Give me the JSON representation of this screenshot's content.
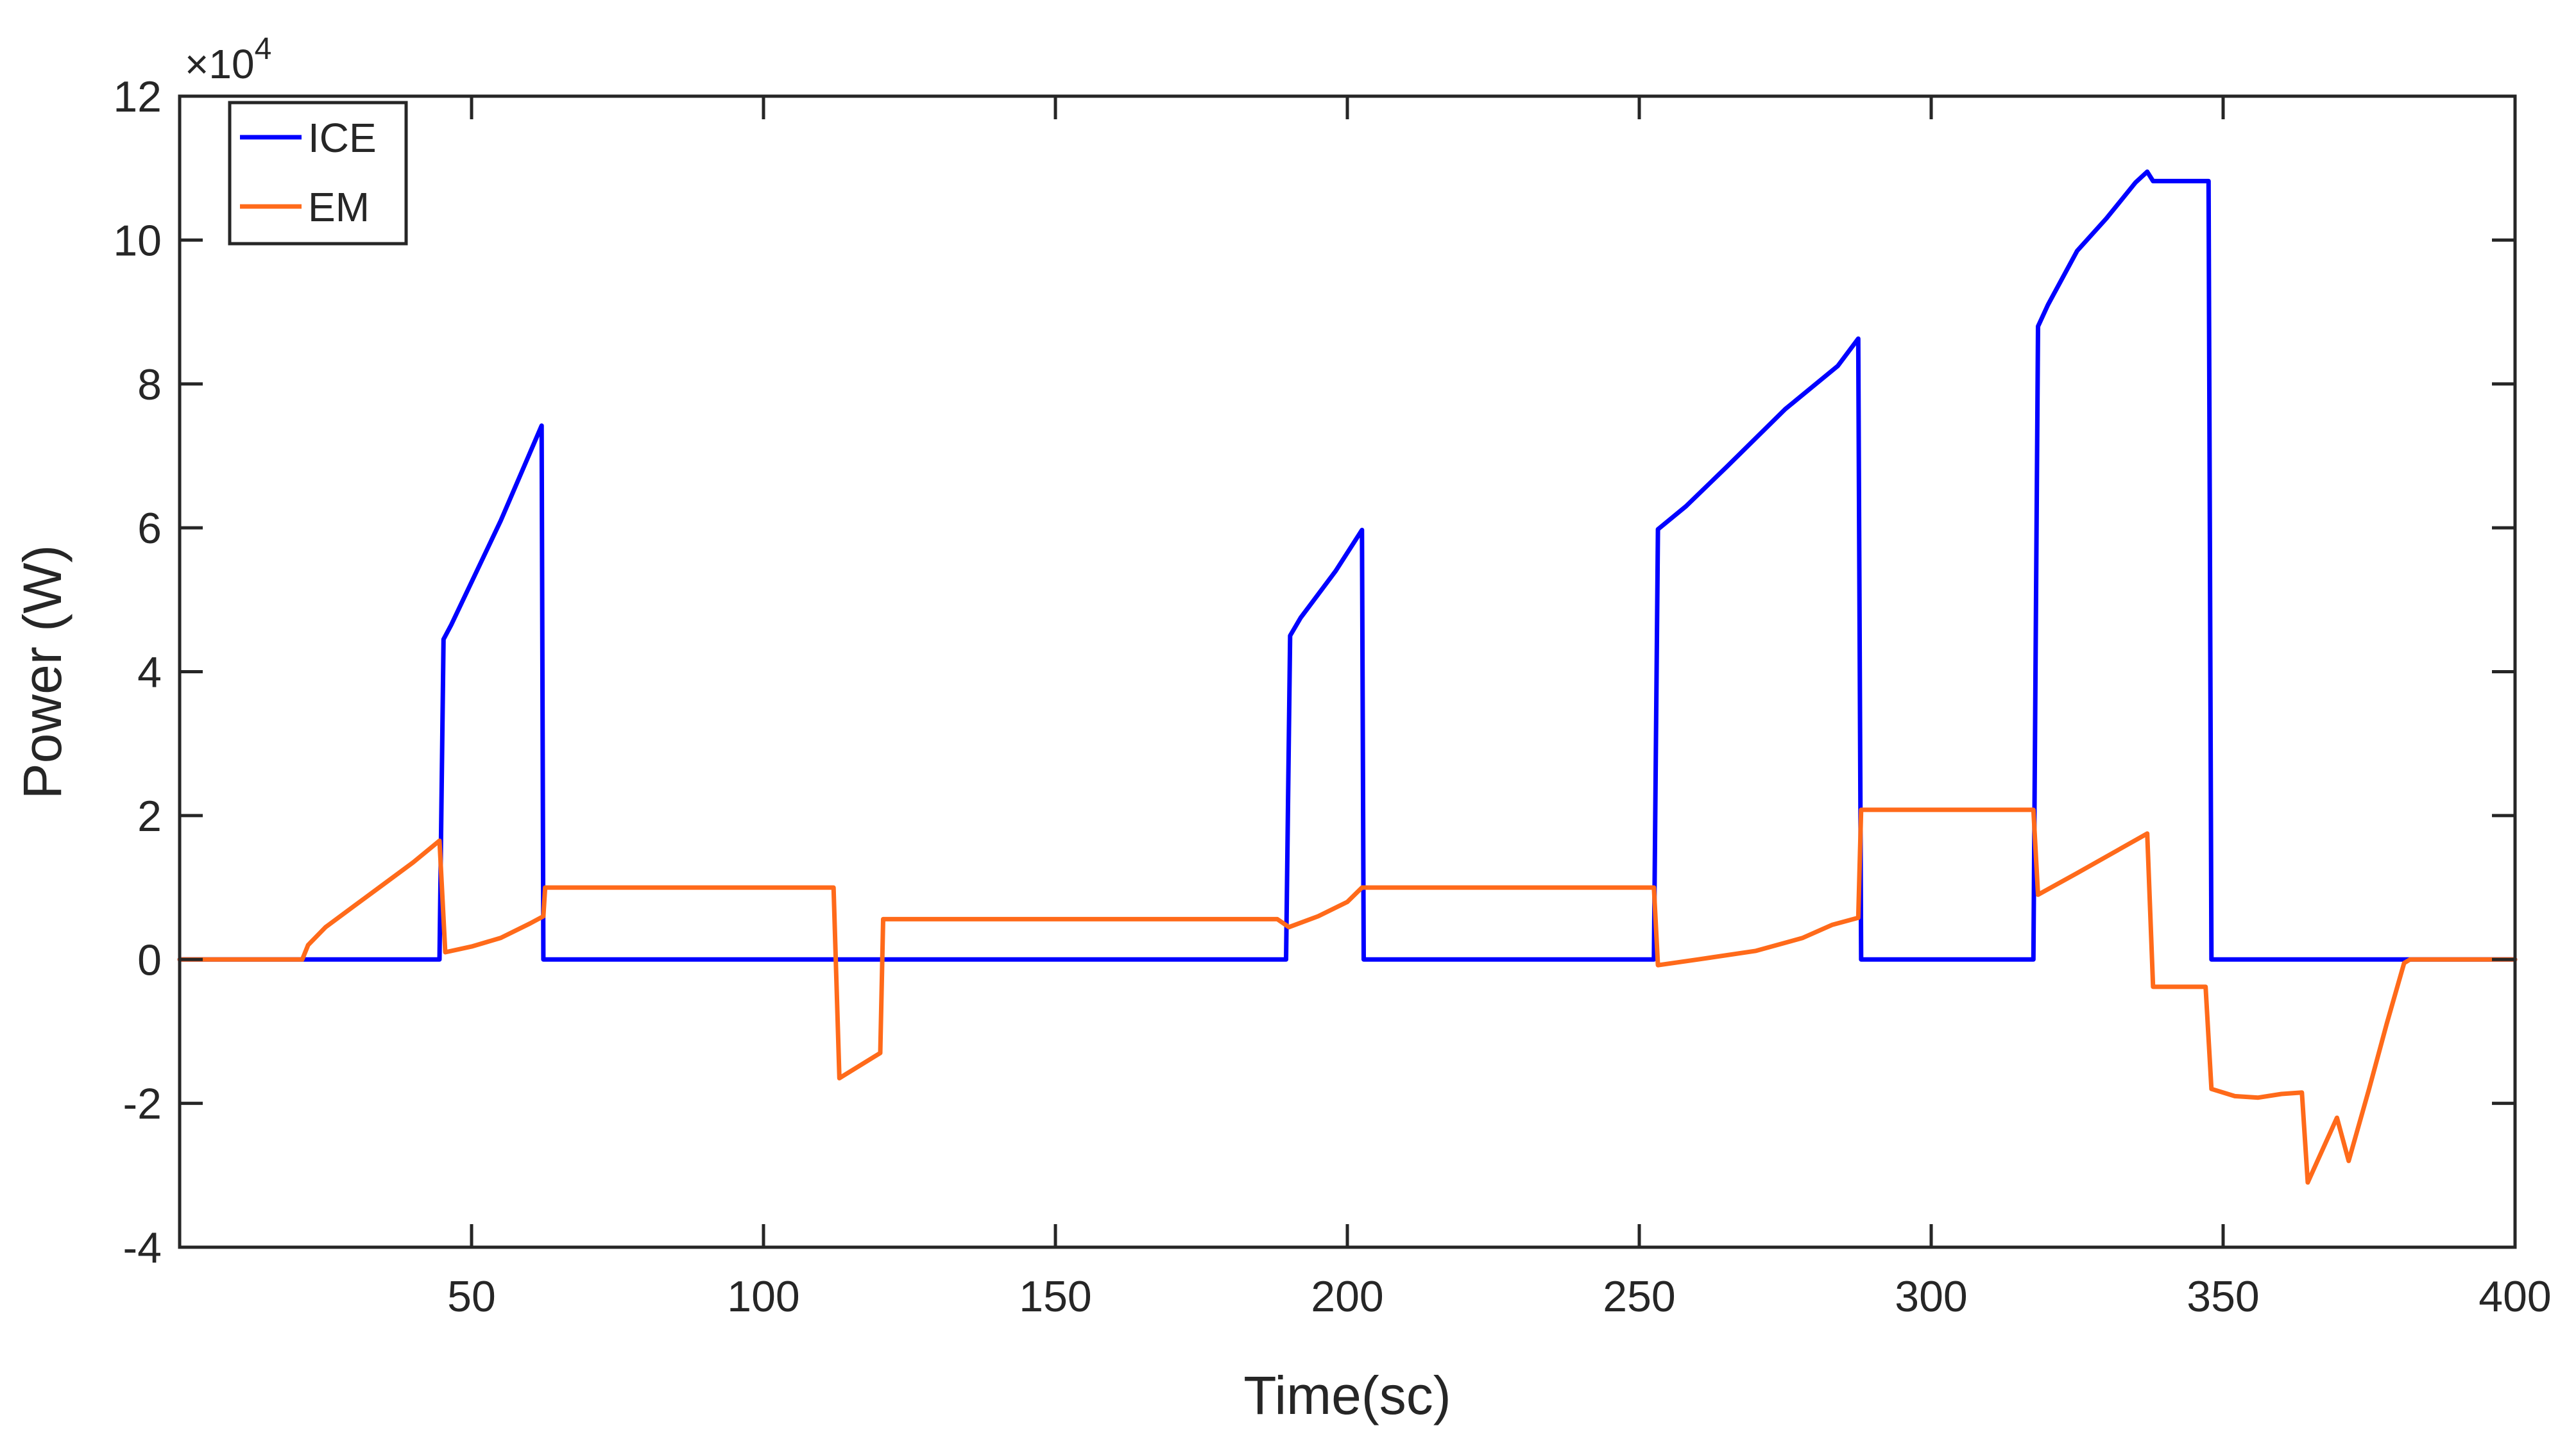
{
  "chart_data": {
    "type": "line",
    "title": "",
    "xlabel": "Time(sc)",
    "ylabel": "Power (W)",
    "y_exponent": {
      "base": "×10",
      "power": "4"
    },
    "xlim": [
      0,
      400
    ],
    "ylim": [
      -4,
      12
    ],
    "x_ticks": [
      50,
      100,
      150,
      200,
      250,
      300,
      350,
      400
    ],
    "y_ticks": [
      -4,
      -2,
      0,
      2,
      4,
      6,
      8,
      10,
      12
    ],
    "x_tick_labels": [
      "50",
      "100",
      "150",
      "200",
      "250",
      "300",
      "350",
      "400"
    ],
    "y_tick_labels": [
      "-4",
      "-2",
      "0",
      "2",
      "4",
      "6",
      "8",
      "10",
      "12"
    ],
    "grid": false,
    "legend_position": "top-left",
    "series": [
      {
        "name": "ICE",
        "color": "#0000ff",
        "points": [
          [
            0,
            0
          ],
          [
            44.5,
            0
          ],
          [
            45.2,
            4.45
          ],
          [
            46.5,
            4.65
          ],
          [
            55,
            6.1
          ],
          [
            62,
            7.42
          ],
          [
            62.3,
            0
          ],
          [
            189.5,
            0
          ],
          [
            190.2,
            4.5
          ],
          [
            192,
            4.75
          ],
          [
            198,
            5.4
          ],
          [
            202.5,
            5.97
          ],
          [
            202.8,
            0
          ],
          [
            252.5,
            0
          ],
          [
            253.2,
            5.98
          ],
          [
            258,
            6.3
          ],
          [
            265,
            6.85
          ],
          [
            275,
            7.65
          ],
          [
            284,
            8.25
          ],
          [
            287.5,
            8.63
          ],
          [
            288,
            0
          ],
          [
            317.5,
            0
          ],
          [
            318.3,
            8.8
          ],
          [
            320,
            9.1
          ],
          [
            325,
            9.85
          ],
          [
            330,
            10.3
          ],
          [
            335,
            10.8
          ],
          [
            337,
            10.95
          ],
          [
            338,
            10.82
          ],
          [
            347.5,
            10.82
          ],
          [
            348,
            0
          ],
          [
            400,
            0
          ]
        ]
      },
      {
        "name": "EM",
        "color": "#ff6a1a",
        "points": [
          [
            0,
            0
          ],
          [
            21,
            0
          ],
          [
            22,
            0.2
          ],
          [
            25,
            0.45
          ],
          [
            30,
            0.75
          ],
          [
            35,
            1.05
          ],
          [
            40,
            1.35
          ],
          [
            44.5,
            1.65
          ],
          [
            45.5,
            0.1
          ],
          [
            50,
            0.18
          ],
          [
            55,
            0.3
          ],
          [
            60,
            0.5
          ],
          [
            62.3,
            0.6
          ],
          [
            62.6,
            1.0
          ],
          [
            112,
            1.0
          ],
          [
            113,
            -1.65
          ],
          [
            120,
            -1.3
          ],
          [
            120.5,
            0.56
          ],
          [
            188,
            0.56
          ],
          [
            190,
            0.45
          ],
          [
            195,
            0.6
          ],
          [
            200,
            0.8
          ],
          [
            202.5,
            1.0
          ],
          [
            252.5,
            1.0
          ],
          [
            253.2,
            -0.08
          ],
          [
            260,
            0.0
          ],
          [
            270,
            0.12
          ],
          [
            278,
            0.3
          ],
          [
            283,
            0.48
          ],
          [
            287.5,
            0.58
          ],
          [
            288,
            2.08
          ],
          [
            317.5,
            2.08
          ],
          [
            318.3,
            0.9
          ],
          [
            325,
            1.2
          ],
          [
            337,
            1.75
          ],
          [
            338,
            -0.38
          ],
          [
            347,
            -0.38
          ],
          [
            348,
            -1.8
          ],
          [
            352,
            -1.9
          ],
          [
            356,
            -1.92
          ],
          [
            360,
            -1.87
          ],
          [
            363.5,
            -1.85
          ],
          [
            364.5,
            -3.1
          ],
          [
            369.5,
            -2.2
          ],
          [
            371.5,
            -2.8
          ],
          [
            375,
            -1.8
          ],
          [
            378,
            -0.9
          ],
          [
            381,
            -0.05
          ],
          [
            382,
            0
          ],
          [
            400,
            0
          ]
        ]
      }
    ]
  }
}
